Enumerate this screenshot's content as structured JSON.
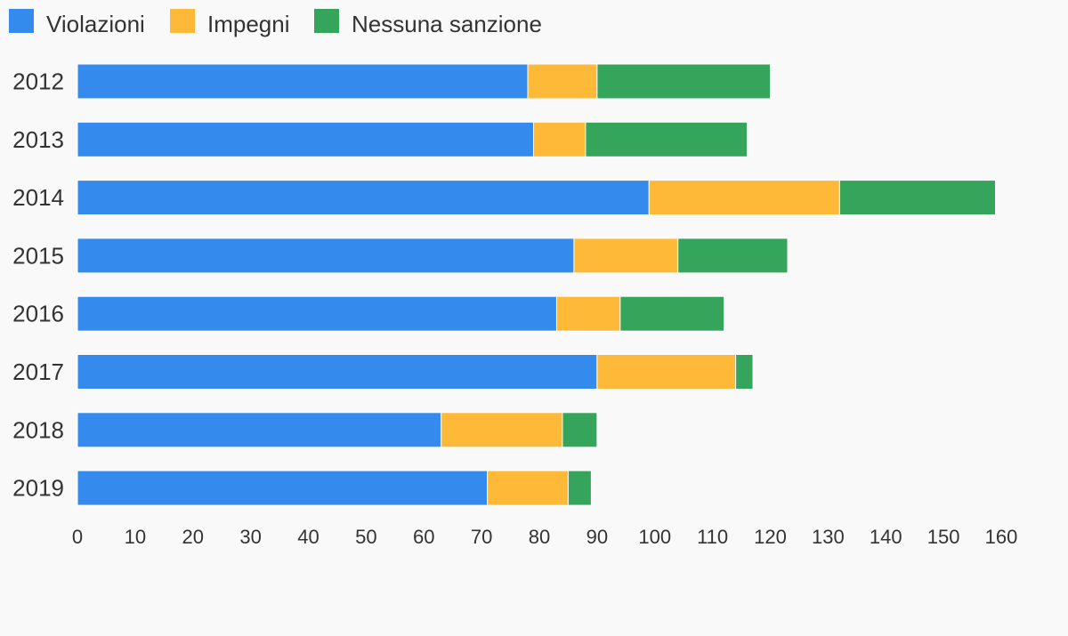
{
  "chart_data": {
    "type": "bar",
    "orientation": "horizontal",
    "stacked": true,
    "categories": [
      "2012",
      "2013",
      "2014",
      "2015",
      "2016",
      "2017",
      "2018",
      "2019"
    ],
    "series": [
      {
        "name": "Violazioni",
        "color": "#348BED",
        "values": [
          78,
          79,
          99,
          86,
          83,
          90,
          63,
          71
        ]
      },
      {
        "name": "Impegni",
        "color": "#FFB939",
        "values": [
          12,
          9,
          33,
          18,
          11,
          24,
          21,
          14
        ]
      },
      {
        "name": "Nessuna sanzione",
        "color": "#34A55A",
        "values": [
          30,
          28,
          27,
          19,
          18,
          3,
          6,
          4
        ]
      }
    ],
    "xlim": [
      0,
      160
    ],
    "xticks": [
      0,
      10,
      20,
      30,
      40,
      50,
      60,
      70,
      80,
      90,
      100,
      110,
      120,
      130,
      140,
      150,
      160
    ],
    "legend_position": "top-left",
    "grid": false
  }
}
